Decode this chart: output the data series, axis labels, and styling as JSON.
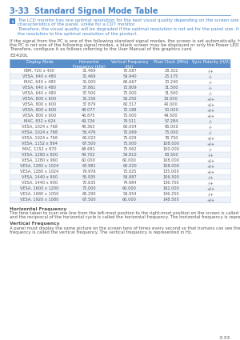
{
  "title": "3-33  Standard Signal Mode Table",
  "title_color": "#4a86c8",
  "note_icon_color": "#4a86c8",
  "note_line1": "The LCD monitor has one optimal resolution for the best visual quality depending on the screen size due to the inherent",
  "note_line2": "characteristics of the panel, unlike for a CDT monitor.",
  "note_line3": "Therefore, the visual quality will be degraded if the optimal resolution is not set for the panel size. It is recommended setting",
  "note_line4": "the resolution to the optimal resolution of the product.",
  "body_line1": "If the signal from the PC is one of the following standard signal modes, the screen is set automatically. However, if the signal from",
  "body_line2": "the PC is not one of the following signal modes, a blank screen may be displayed or only the Power LED may be turned on.",
  "body_line3": "Therefore, configure it as follows referring to the User Manual of the graphics card.",
  "model": "E2420L",
  "table_header": [
    "Display Mode",
    "Horizontal\nFrequency (kHz)",
    "Vertical Frequency\n(Hz)",
    "Pixel Clock (MHz)",
    "Sync Polarity (H/V)"
  ],
  "table_header_bg": "#5b8fc9",
  "table_header_color": "#ffffff",
  "table_row_bg1": "#ffffff",
  "table_row_bg2": "#edf2f9",
  "table_data": [
    [
      "IBM, 720 x 400",
      "31.469",
      "70.087",
      "28.322",
      "-/+"
    ],
    [
      "VESA, 640 x 480",
      "31.469",
      "59.940",
      "25.175",
      "-/-"
    ],
    [
      "MAC, 640 x 480",
      "35.000",
      "66.667",
      "30.240",
      "-/-"
    ],
    [
      "VESA, 640 x 480",
      "37.861",
      "72.809",
      "31.500",
      "-/-"
    ],
    [
      "VESA, 640 x 480",
      "37.500",
      "75.000",
      "31.500",
      "-/-"
    ],
    [
      "VESA, 800 x 600",
      "35.156",
      "56.250",
      "36.000",
      "+/+"
    ],
    [
      "VESA, 800 x 600",
      "37.879",
      "60.317",
      "40.000",
      "+/+"
    ],
    [
      "VESA, 800 x 600",
      "48.077",
      "72.188",
      "50.000",
      "+/+"
    ],
    [
      "VESA, 800 x 600",
      "46.875",
      "75.000",
      "49.500",
      "+/+"
    ],
    [
      "MAC, 832 x 624",
      "49.726",
      "74.511",
      "57.284",
      "-/-"
    ],
    [
      "VESA, 1024 x 768",
      "48.363",
      "60.004",
      "65.000",
      "-/-"
    ],
    [
      "VESA, 1024 x 768",
      "56.476",
      "70.069",
      "75.000",
      "-/-"
    ],
    [
      "VESA, 1024 x 768",
      "60.023",
      "75.029",
      "78.750",
      "+/+"
    ],
    [
      "VESA, 1152 x 864",
      "67.500",
      "75.000",
      "108.000",
      "+/+"
    ],
    [
      "MAC, 1152 x 870",
      "68.681",
      "75.062",
      "100.000",
      "-/-"
    ],
    [
      "VESA, 1280 x 800",
      "49.702",
      "59.810",
      "83.500",
      "-/+"
    ],
    [
      "VESA, 1280 x 960",
      "60.000",
      "60.000",
      "108.000",
      "+/+"
    ],
    [
      "VESA, 1280 x 1024",
      "63.981",
      "60.020",
      "108.000",
      "+/+"
    ],
    [
      "VESA, 1280 x 1024",
      "79.976",
      "75.025",
      "135.000",
      "+/+"
    ],
    [
      "VESA, 1440 x 900",
      "55.935",
      "59.887",
      "106.500",
      "-/+"
    ],
    [
      "VESA, 1440 x 900",
      "70.635",
      "74.984",
      "136.750",
      "-/+"
    ],
    [
      "VESA, 1600 x 1200",
      "75.000",
      "60.000",
      "162.000",
      "+/+"
    ],
    [
      "VESA, 1680 x 1050",
      "65.290",
      "59.954",
      "146.250",
      "-/+"
    ],
    [
      "VESA, 1920 x 1080",
      "67.500",
      "60.000",
      "148.500",
      "+/+"
    ]
  ],
  "footer_title1": "Horizontal Frequency",
  "footer_text1a": "The time taken to scan one line from the left-most position to the right-most position on the screen is called the horizontal cycle",
  "footer_text1b": "and the reciprocal of the horizontal cycle is called the horizontal frequency. The horizontal frequency is represented in kHz.",
  "footer_title2": "Vertical Frequency",
  "footer_text2a": "A panel must display the same picture on the screen tens of times every second so that humans can see the picture. This",
  "footer_text2b": "frequency is called the vertical frequency. The vertical frequency is represented in Hz.",
  "page_num": "3-33",
  "bg_color": "#ffffff",
  "text_color": "#555555",
  "note_color": "#4a86c8",
  "line_color": "#c8d4e8",
  "title_line_color": "#7aaad4"
}
